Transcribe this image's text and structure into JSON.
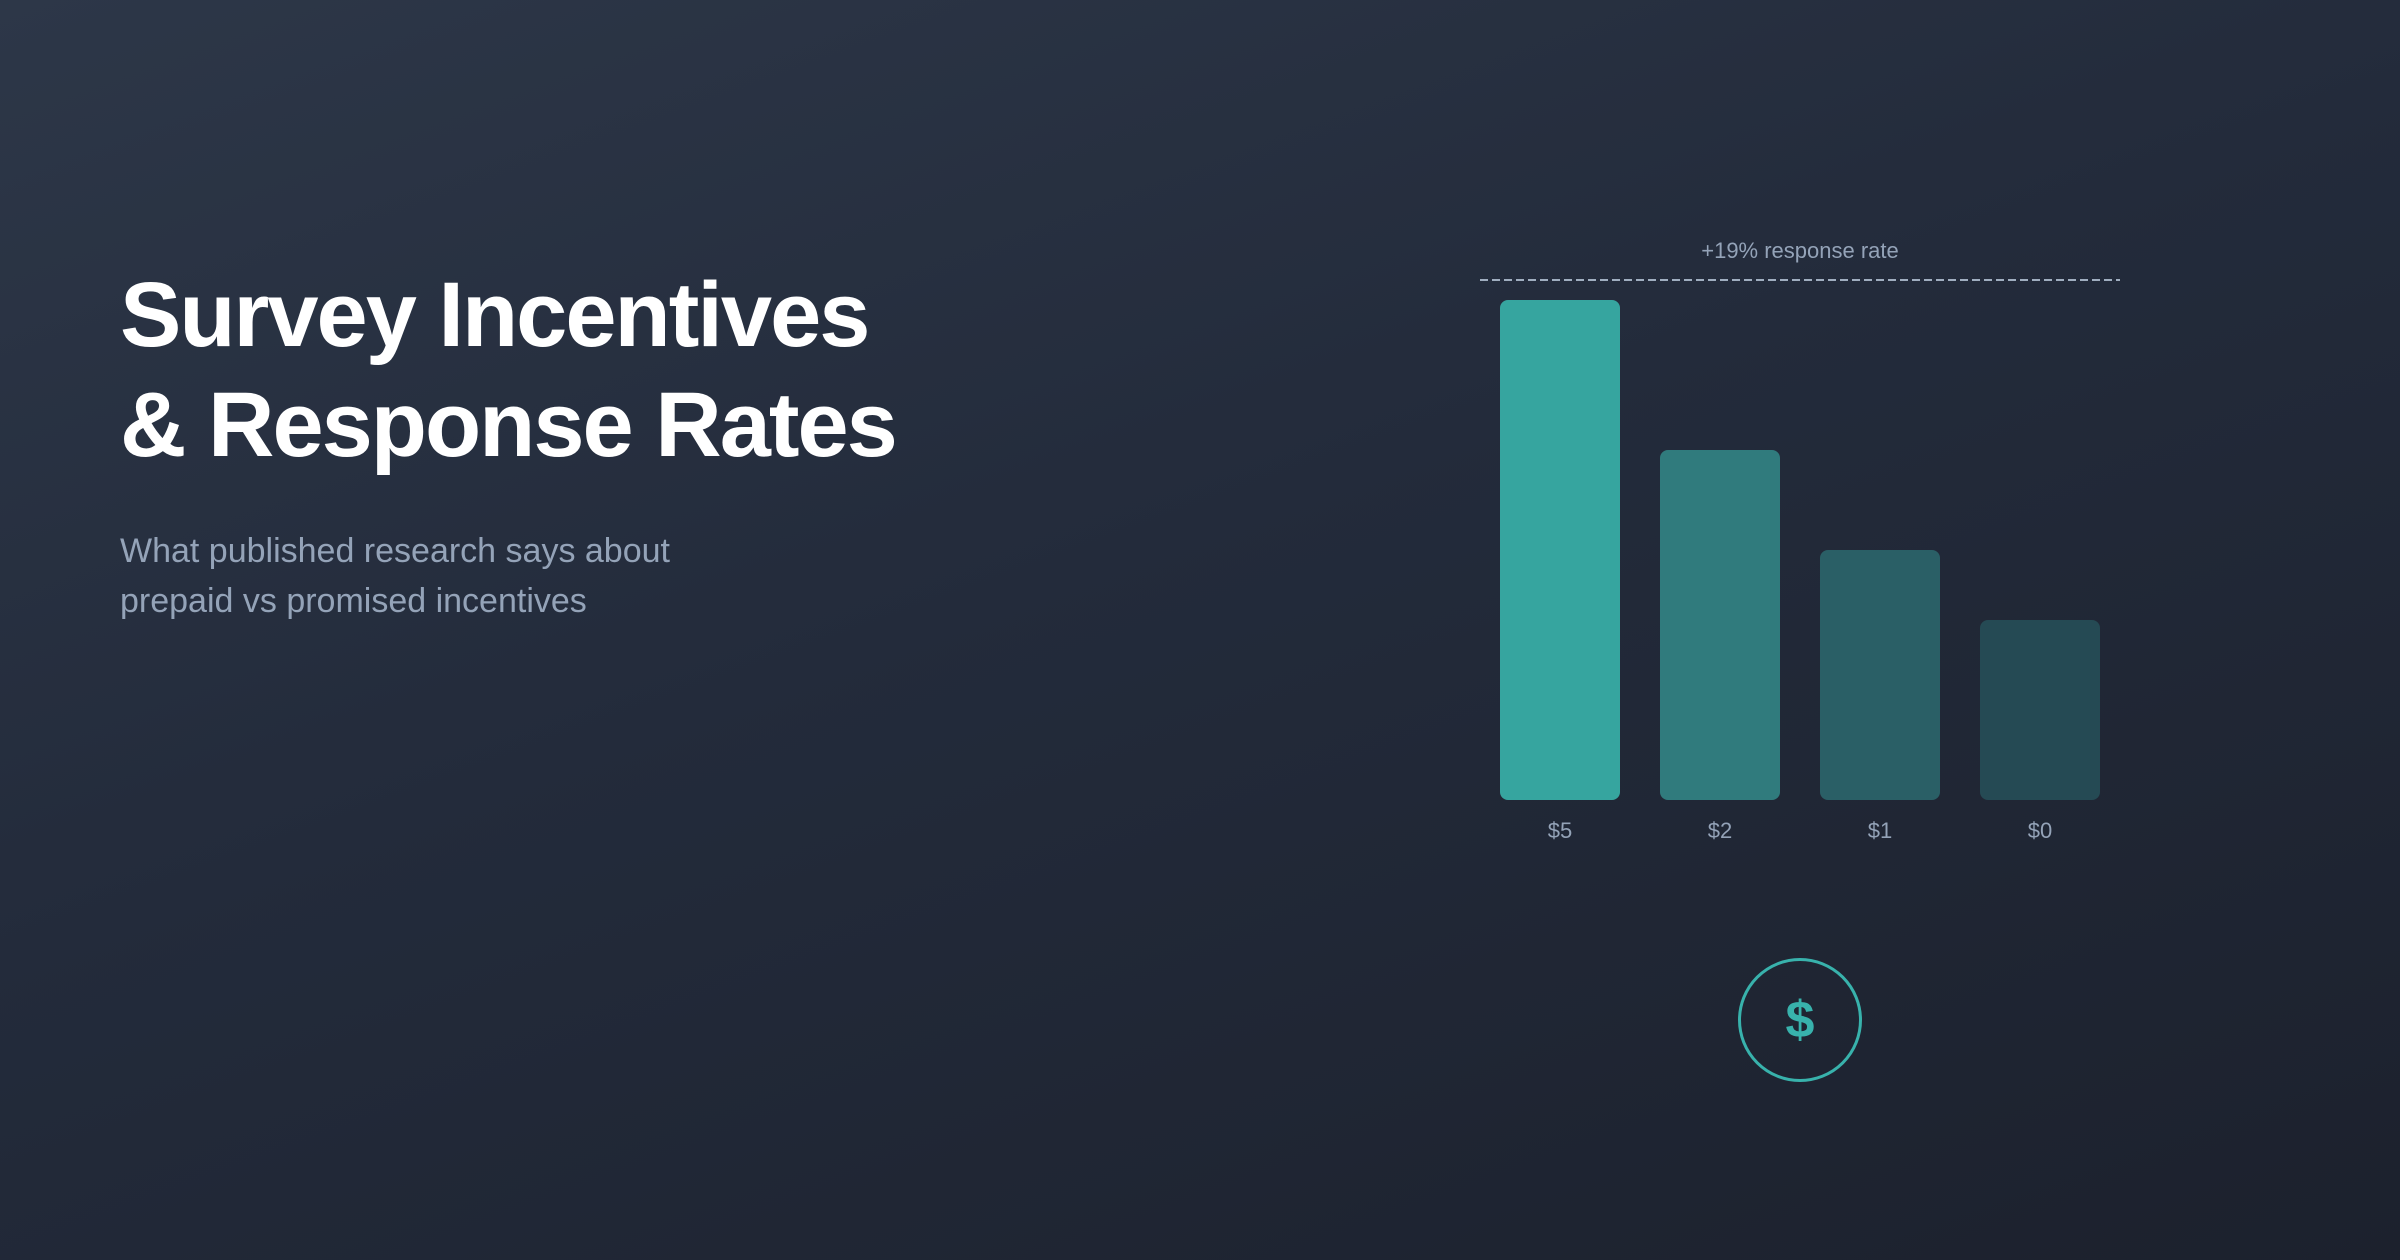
{
  "header": {
    "title_lines": [
      "Survey Incentives",
      "& Response Rates"
    ],
    "subtitle_lines": [
      "What published research says about",
      "prepaid vs promised incentives"
    ]
  },
  "chart": {
    "annotation": "+19% response rate",
    "icon": "dollar-icon",
    "icon_glyph": "$"
  },
  "colors": {
    "accent": "#38b2ac",
    "bar_5": "#36a59f",
    "bar_2": "#307b7d",
    "bar_1": "#2a5f66",
    "bar_0": "#254a54",
    "muted_text": "#94a3b8",
    "title_text": "#ffffff"
  },
  "chart_data": {
    "type": "bar",
    "title": "Survey Incentives & Response Rates",
    "subtitle": "What published research says about prepaid vs promised incentives",
    "categories": [
      "$5",
      "$2",
      "$1",
      "$0"
    ],
    "values": [
      100,
      70,
      50,
      36
    ],
    "value_unit": "relative bar height (% of tallest)",
    "xlabel": "",
    "ylabel": "",
    "ylim": [
      0,
      100
    ],
    "grid": false,
    "legend": null,
    "annotations": [
      {
        "text": "+19% response rate",
        "type": "dashed reference line above tallest bar"
      }
    ]
  }
}
